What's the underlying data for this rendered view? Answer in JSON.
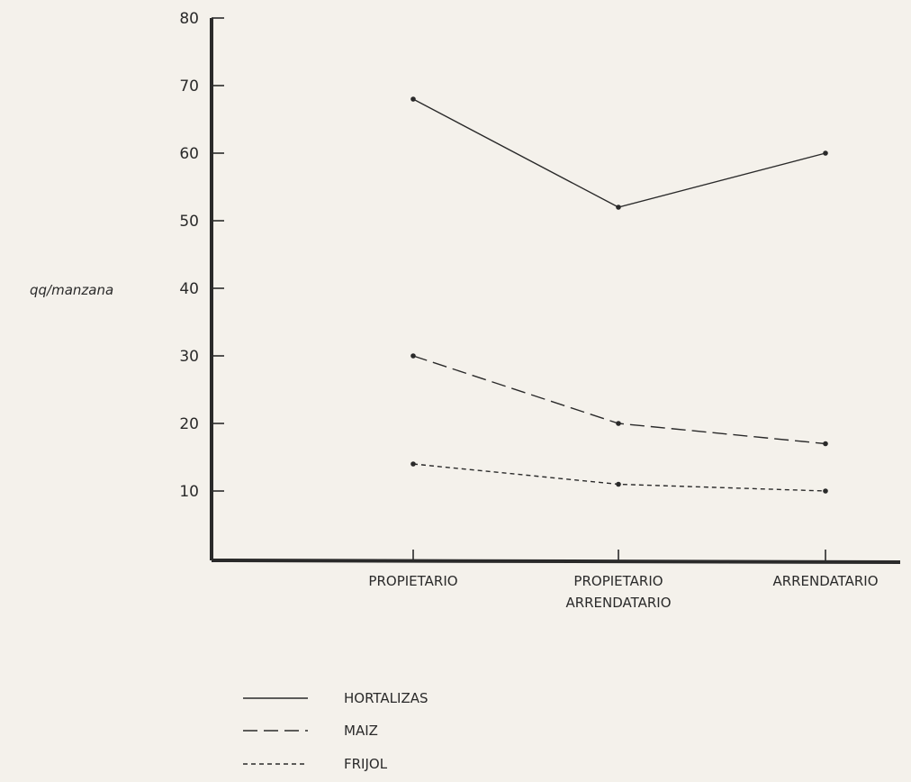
{
  "chart_data": {
    "type": "line",
    "title": "",
    "xlabel": "",
    "ylabel": "qq/manzana",
    "ylim": [
      0,
      80
    ],
    "yticks": [
      10,
      20,
      30,
      40,
      50,
      60,
      70,
      80
    ],
    "categories": [
      "PROPIETARIO",
      "PROPIETARIO ARRENDATARIO",
      "ARRENDATARIO"
    ],
    "category_lines": [
      [
        "PROPIETARIO"
      ],
      [
        "PROPIETARIO",
        "ARRENDATARIO"
      ],
      [
        "ARRENDATARIO"
      ]
    ],
    "grid": false,
    "legend_position": "bottom-left",
    "series": [
      {
        "name": "HORTALIZAS",
        "style": "solid",
        "values": [
          68,
          52,
          60
        ]
      },
      {
        "name": "MAIZ",
        "style": "dashed",
        "values": [
          30,
          20,
          17
        ]
      },
      {
        "name": "FRIJOL",
        "style": "dotted",
        "values": [
          14,
          11,
          10
        ]
      }
    ]
  },
  "colors": {
    "ink": "#2a2a2a",
    "paper": "#f4f1eb"
  }
}
